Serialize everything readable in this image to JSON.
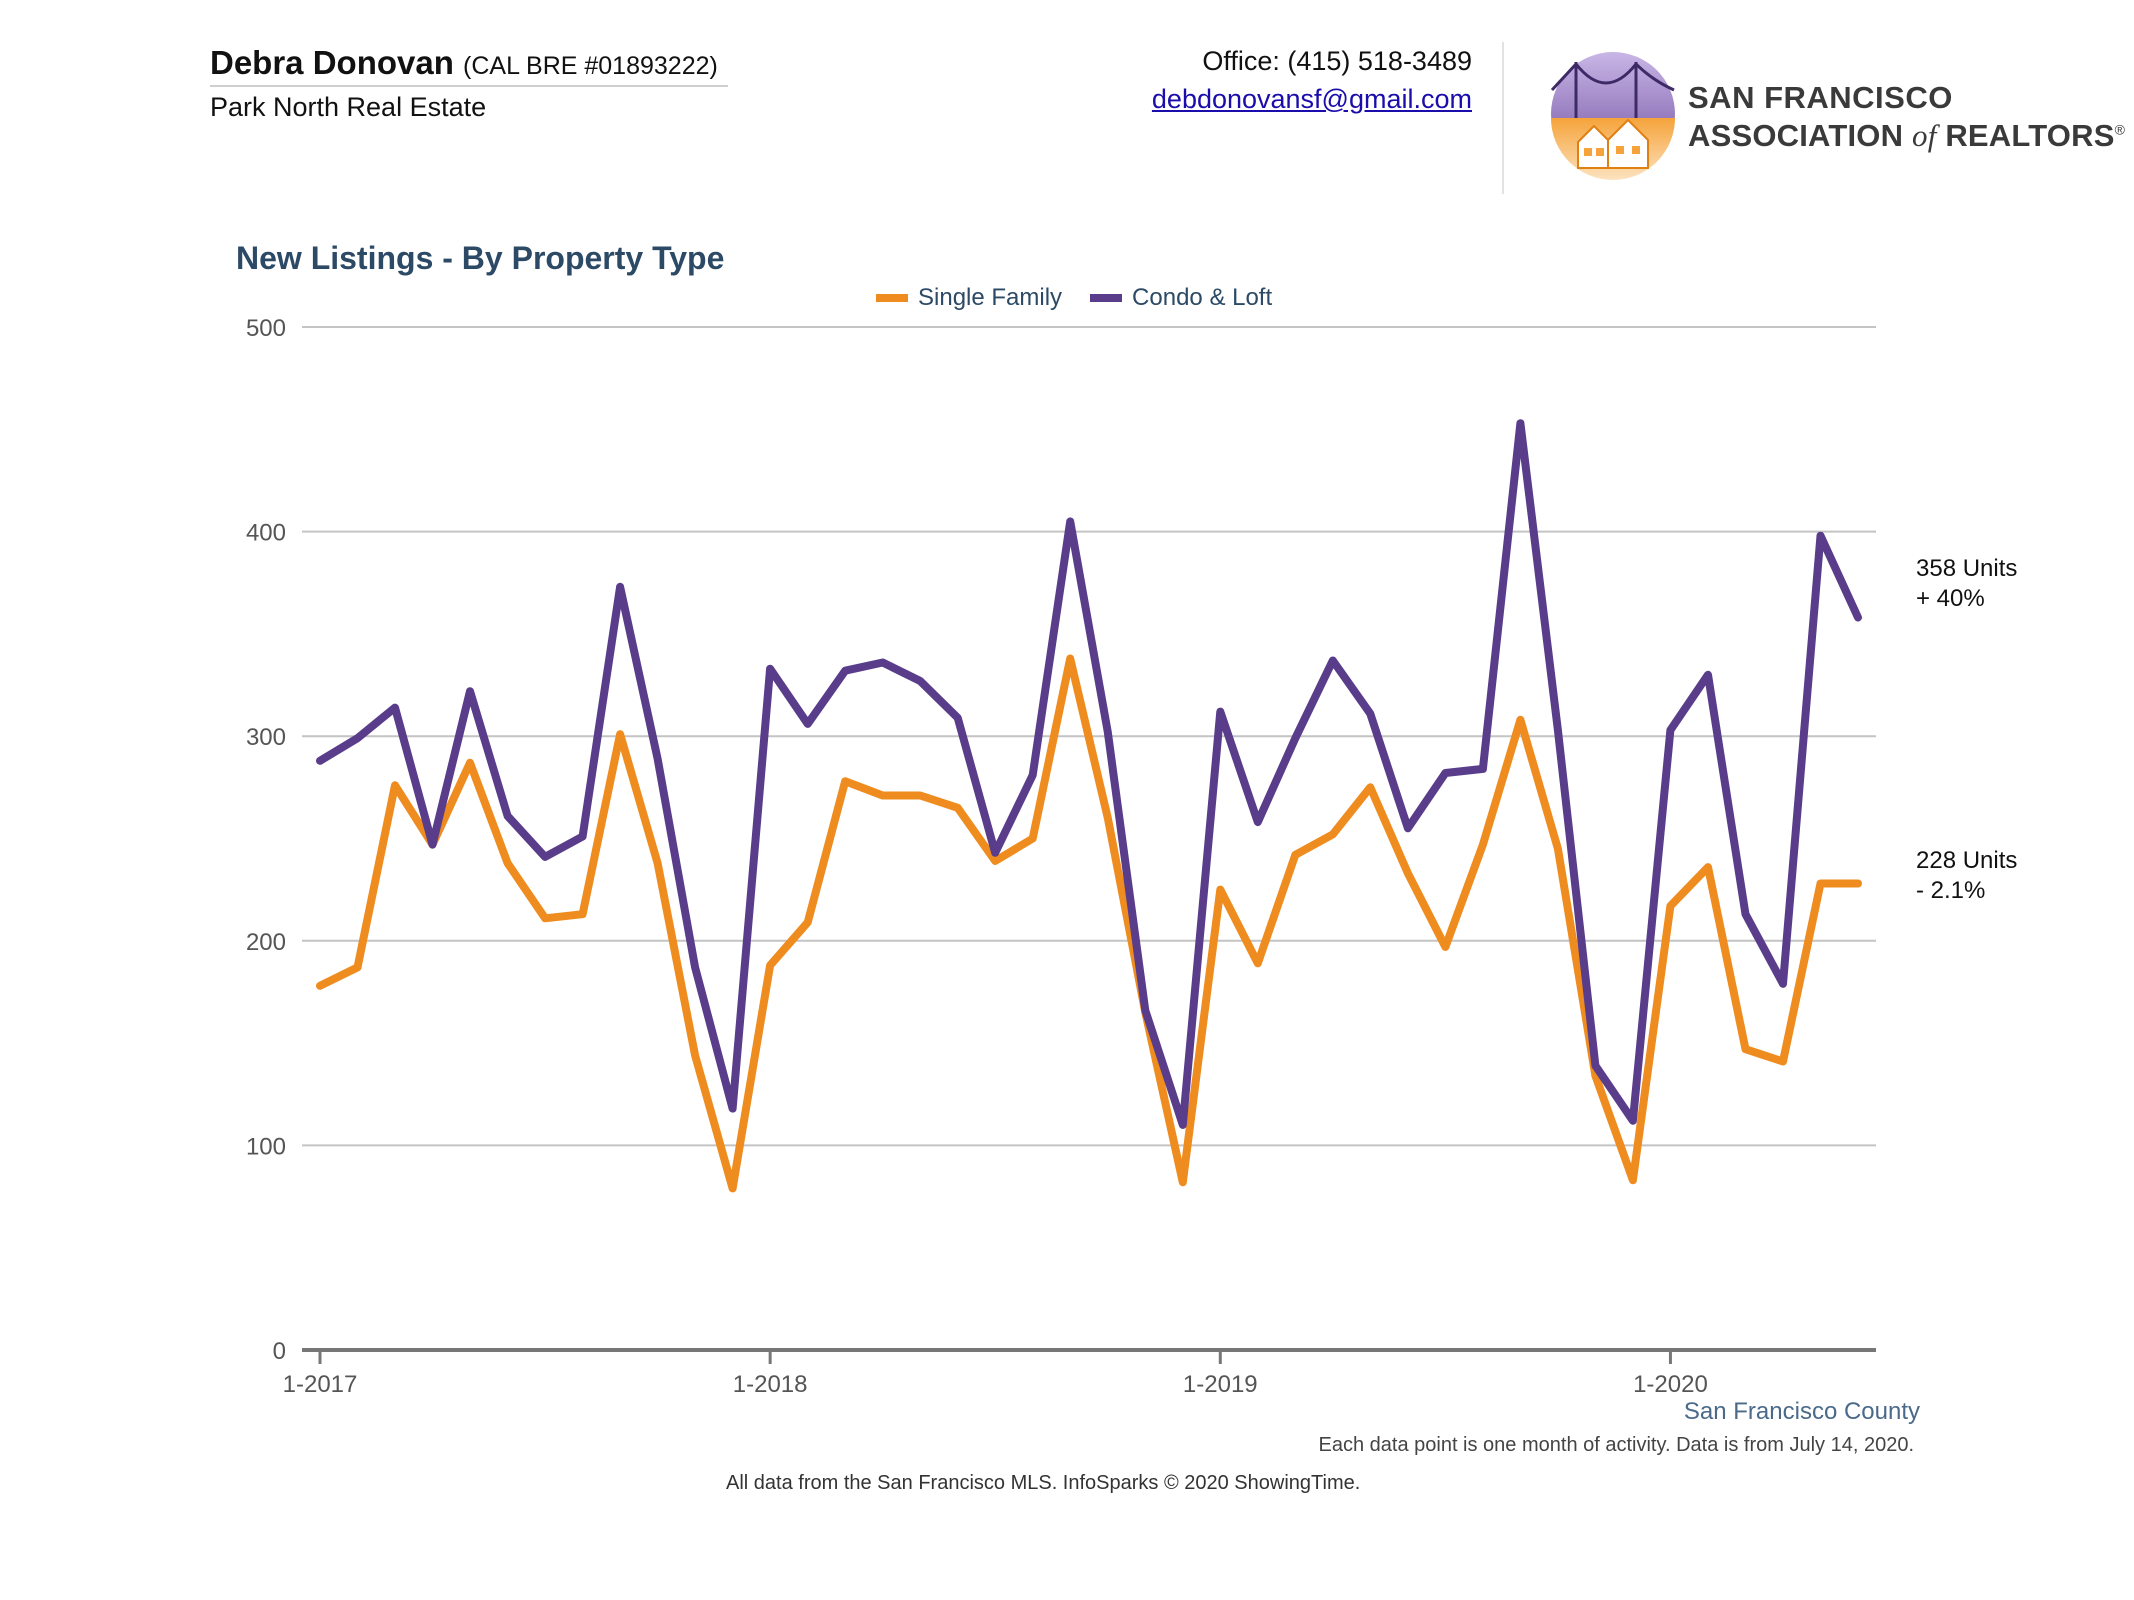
{
  "header": {
    "agent_name": "Debra Donovan",
    "agent_license": "(CAL BRE #01893222)",
    "company": "Park North Real Estate",
    "office": "Office: (415) 518-3489",
    "email": "debdonovansf@gmail.com",
    "assoc_line1": "SAN FRANCISCO",
    "assoc_line2_a": "ASSOCIATION ",
    "assoc_line2_of": "of",
    "assoc_line2_b": " REALTORS",
    "assoc_mark": "®"
  },
  "footer": {
    "county": "San Francisco County",
    "note": "Each data point is one month of activity. Data is from July 14, 2020.",
    "source": "All data from the San Francisco MLS. InfoSparks © 2020 ShowingTime."
  },
  "colors": {
    "single_family": "#ef8c1f",
    "condo_loft": "#5a3d8a",
    "grid": "#c4c4c4",
    "axis": "#777777",
    "title": "#2c4a66"
  },
  "chart_data": {
    "type": "line",
    "title": "New Listings - By Property Type",
    "xlabel": "",
    "ylabel": "",
    "ylim": [
      0,
      500
    ],
    "yticks": [
      0,
      100,
      200,
      300,
      400,
      500
    ],
    "xtick_labels": [
      "1-2017",
      "1-2018",
      "1-2019",
      "1-2020"
    ],
    "xtick_months": [
      "2017-01",
      "2018-01",
      "2019-01",
      "2020-01"
    ],
    "grid": true,
    "legend_position": "top-center",
    "x_start": "2017-01",
    "x_end": "2020-06",
    "series": [
      {
        "name": "Single Family",
        "color": "#ef8c1f",
        "values": [
          178,
          187,
          276,
          247,
          287,
          238,
          211,
          213,
          301,
          238,
          144,
          79,
          188,
          209,
          278,
          271,
          271,
          265,
          239,
          250,
          338,
          260,
          165,
          82,
          225,
          189,
          242,
          252,
          275,
          233,
          197,
          247,
          308,
          245,
          134,
          83,
          217,
          236,
          147,
          141,
          228,
          228
        ],
        "end_label_value": "228 Units",
        "end_label_change": "- 2.1%"
      },
      {
        "name": "Condo & Loft",
        "color": "#5a3d8a",
        "values": [
          288,
          299,
          314,
          247,
          322,
          261,
          241,
          251,
          373,
          289,
          187,
          118,
          333,
          306,
          332,
          336,
          327,
          309,
          243,
          281,
          405,
          302,
          166,
          110,
          312,
          258,
          299,
          337,
          311,
          255,
          282,
          284,
          453,
          303,
          139,
          112,
          303,
          330,
          213,
          179,
          398,
          358
        ],
        "end_label_value": "358 Units",
        "end_label_change": "+ 40%"
      }
    ]
  }
}
